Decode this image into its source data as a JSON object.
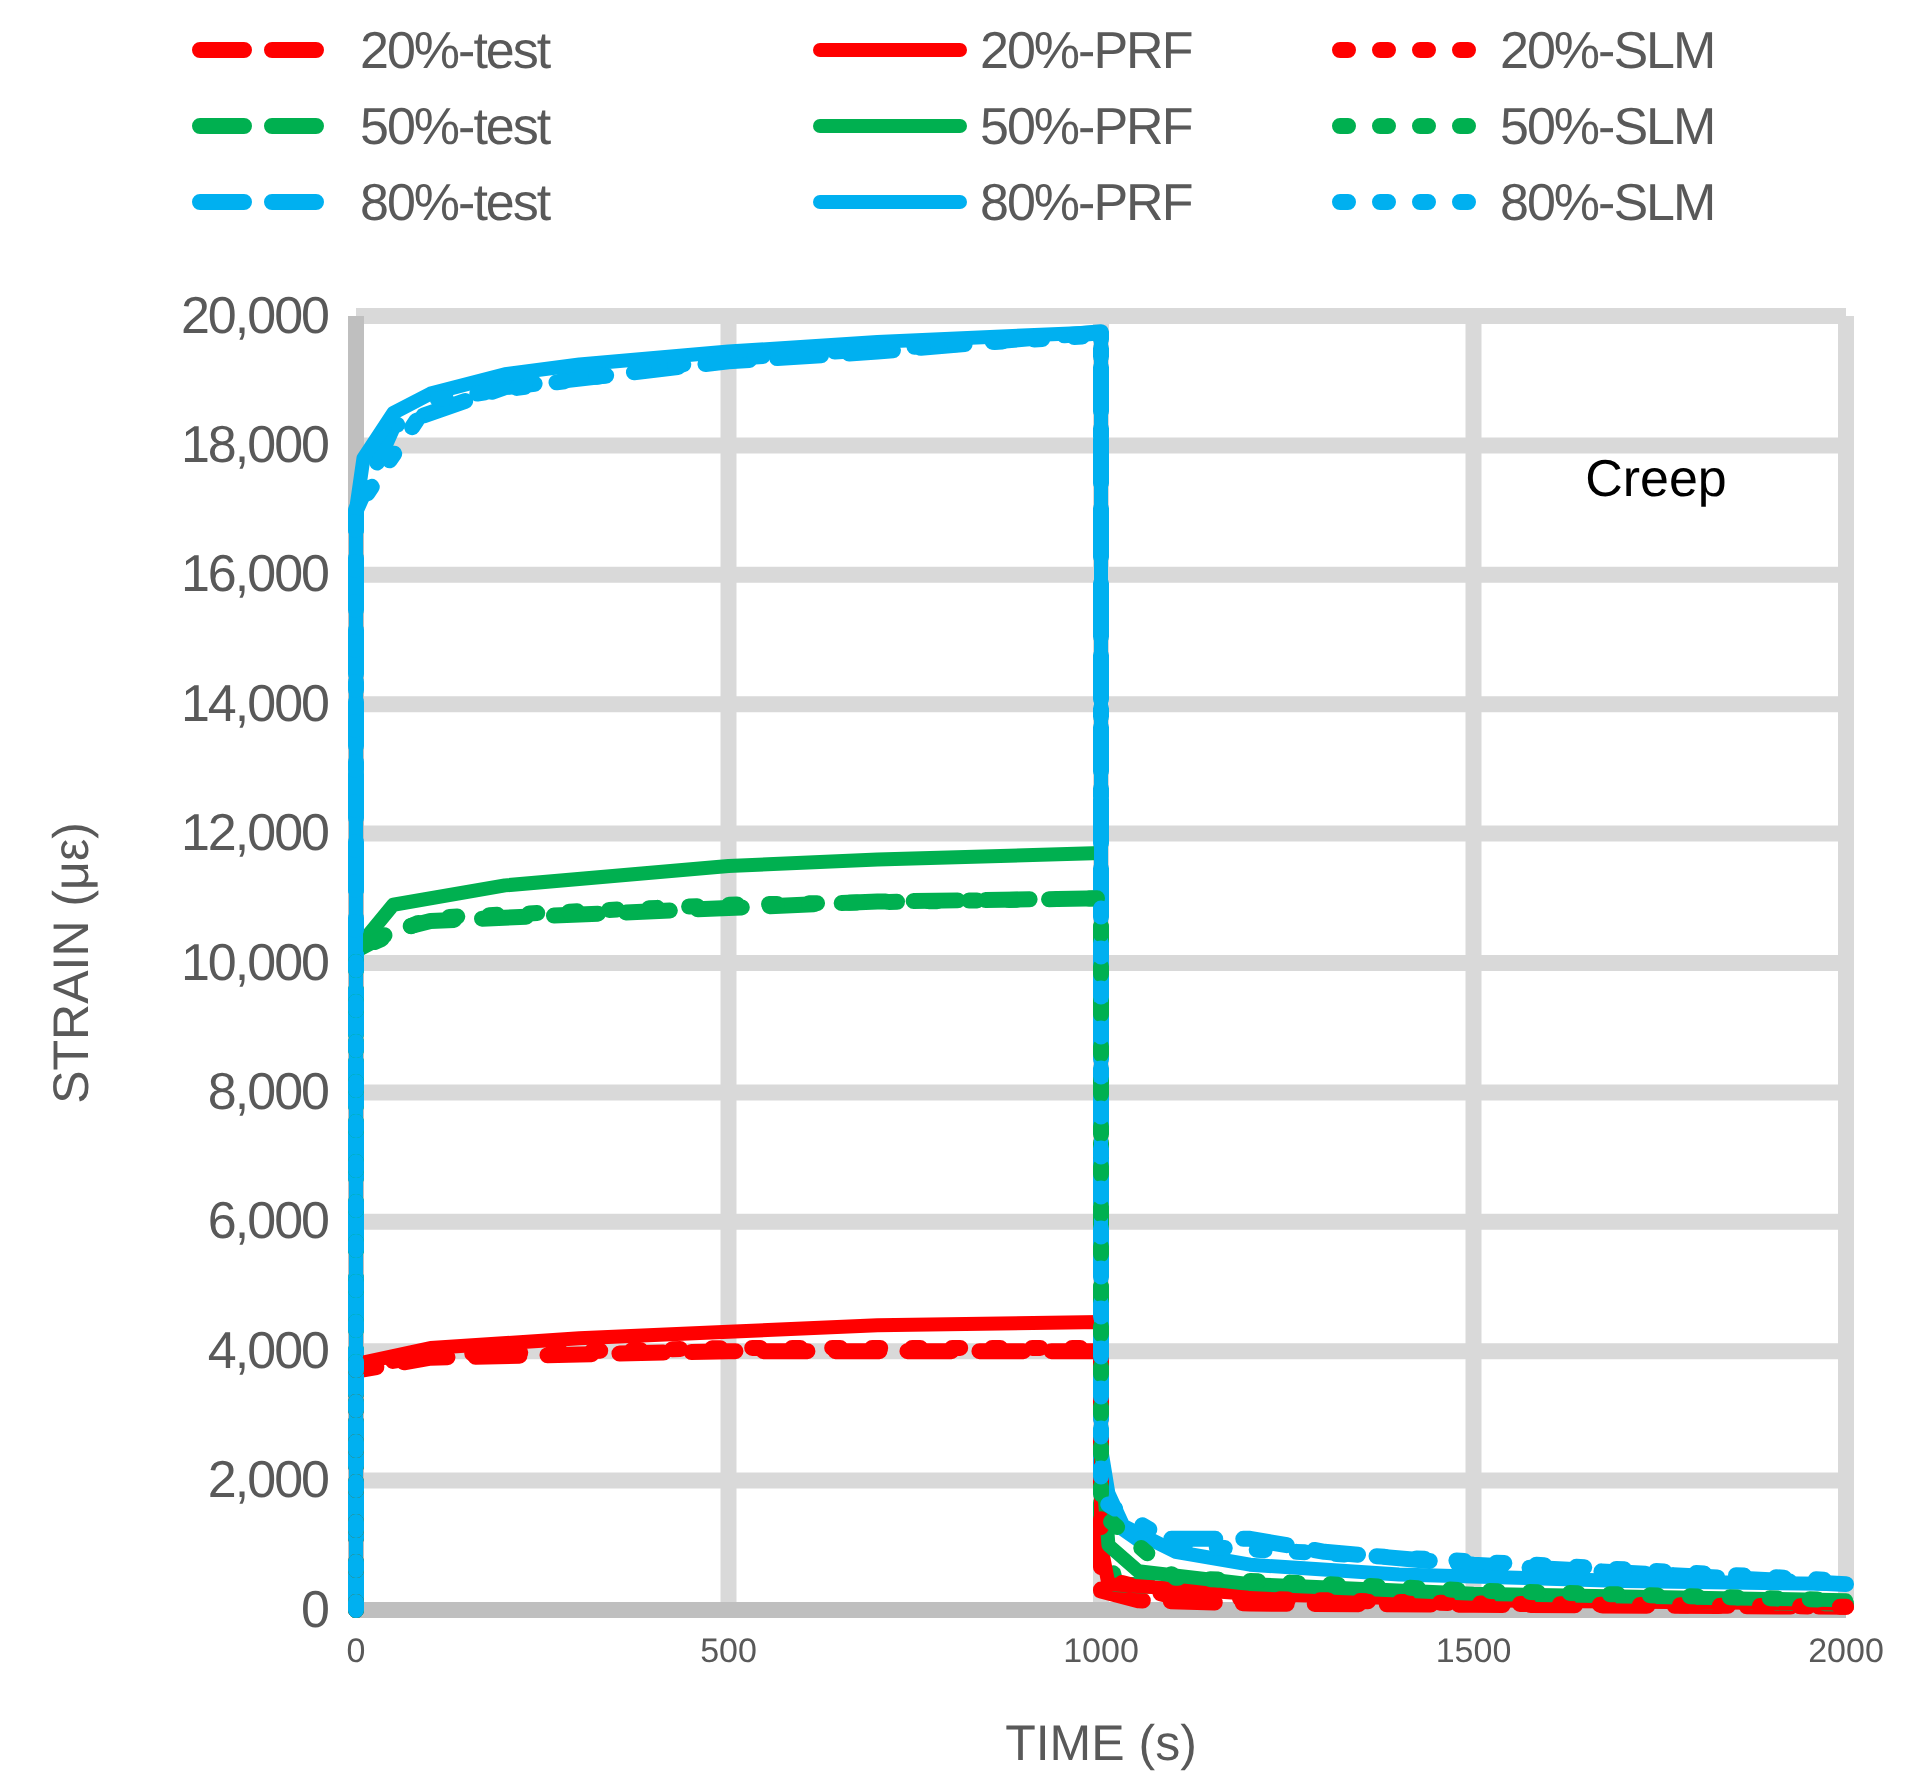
{
  "chart_data": {
    "type": "line",
    "xlabel": "TIME (s)",
    "ylabel": "STRAIN (με)",
    "annotations": [
      "Creep"
    ],
    "xlim": [
      0,
      2000
    ],
    "xticks": [
      0,
      500,
      1000,
      1500,
      2000
    ],
    "ylim": [
      0,
      20000
    ],
    "yticks": [
      {
        "value": 0,
        "label": "0"
      },
      {
        "value": 2000,
        "label": "2,000"
      },
      {
        "value": 4000,
        "label": "4,000"
      },
      {
        "value": 6000,
        "label": "6,000"
      },
      {
        "value": 8000,
        "label": "8,000"
      },
      {
        "value": 10000,
        "label": "10,000"
      },
      {
        "value": 12000,
        "label": "12,000"
      },
      {
        "value": 14000,
        "label": "14,000"
      },
      {
        "value": 16000,
        "label": "16,000"
      },
      {
        "value": 18000,
        "label": "18,000"
      },
      {
        "value": 20000,
        "label": "20,000"
      }
    ],
    "grid": true,
    "legend": "top",
    "marker": "none",
    "series": [
      {
        "name": "20%-test",
        "color": "#ff0000",
        "line_style": "dashed",
        "x": [
          0,
          0,
          100,
          300,
          500,
          700,
          1000,
          1000,
          1050,
          1200,
          1500,
          2000
        ],
        "values": [
          0,
          3700,
          3900,
          3950,
          4000,
          4000,
          4000,
          300,
          150,
          100,
          80,
          50
        ]
      },
      {
        "name": "50%-test",
        "color": "#00b050",
        "line_style": "dashed",
        "x": [
          0,
          0,
          50,
          100,
          300,
          500,
          700,
          1000,
          1000,
          1020,
          1200,
          1500,
          2000
        ],
        "values": [
          0,
          10200,
          10500,
          10650,
          10750,
          10850,
          10950,
          11000,
          1300,
          400,
          300,
          200,
          100
        ]
      },
      {
        "name": "80%-test",
        "color": "#00b0f0",
        "line_style": "dashed",
        "x": [
          0,
          0,
          50,
          200,
          500,
          700,
          900,
          1000,
          1000,
          1050,
          1200,
          1300,
          1500,
          2000
        ],
        "values": [
          0,
          17000,
          18300,
          18900,
          19300,
          19450,
          19650,
          19750,
          1500,
          1100,
          1100,
          900,
          700,
          400
        ]
      },
      {
        "name": "20%-PRF",
        "color": "#ff0000",
        "line_style": "solid",
        "x": [
          0,
          0,
          100,
          300,
          500,
          700,
          1000,
          1000,
          1010,
          1200,
          1500,
          2000
        ],
        "values": [
          0,
          3800,
          4050,
          4200,
          4300,
          4400,
          4450,
          1000,
          400,
          250,
          150,
          100
        ]
      },
      {
        "name": "50%-PRF",
        "color": "#00b050",
        "line_style": "solid",
        "x": [
          0,
          0,
          50,
          200,
          500,
          700,
          1000,
          1000,
          1010,
          1050,
          1200,
          1500,
          2000
        ],
        "values": [
          0,
          10200,
          10900,
          11200,
          11500,
          11600,
          11700,
          2500,
          1000,
          600,
          400,
          250,
          150
        ]
      },
      {
        "name": "80%-PRF",
        "color": "#00b0f0",
        "line_style": "solid",
        "x": [
          0,
          0,
          10,
          50,
          100,
          200,
          300,
          500,
          700,
          1000,
          1000,
          1010,
          1030,
          1100,
          1200,
          1400,
          1700,
          2000
        ],
        "values": [
          0,
          17000,
          17800,
          18500,
          18800,
          19100,
          19250,
          19450,
          19600,
          19750,
          2500,
          1800,
          1300,
          900,
          700,
          550,
          450,
          400
        ]
      },
      {
        "name": "20%-SLM",
        "color": "#ff0000",
        "line_style": "dotted",
        "x": [
          0,
          0,
          100,
          500,
          1000,
          1000,
          1100,
          1500,
          2000
        ],
        "values": [
          0,
          3750,
          3950,
          4050,
          4050,
          500,
          200,
          100,
          50
        ]
      },
      {
        "name": "50%-SLM",
        "color": "#00b050",
        "line_style": "dotted",
        "x": [
          0,
          0,
          100,
          500,
          1000,
          1000,
          1100,
          1500,
          2000
        ],
        "values": [
          0,
          10200,
          10700,
          10900,
          11000,
          1500,
          500,
          300,
          150
        ]
      },
      {
        "name": "80%-SLM",
        "color": "#00b0f0",
        "line_style": "dotted",
        "x": [
          0,
          0,
          100,
          500,
          1000,
          1000,
          1100,
          1500,
          2000
        ],
        "values": [
          0,
          17000,
          18700,
          19350,
          19700,
          1700,
          1000,
          750,
          450
        ]
      }
    ]
  }
}
